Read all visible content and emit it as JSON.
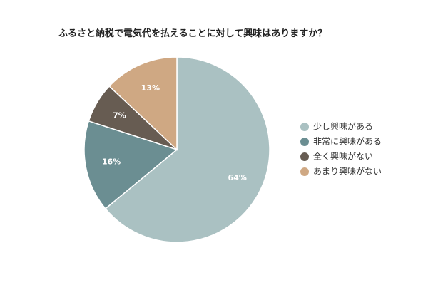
{
  "chart_data": {
    "type": "pie",
    "title": "ふるさと納税で電気代を払えることに対して興味はありますか？",
    "categories": [
      "少し興味がある",
      "非常に興味がある",
      "全く興味がない",
      "あまり興味がない"
    ],
    "values": [
      64,
      16,
      7,
      13
    ],
    "value_labels": [
      "64%",
      "16%",
      "7%",
      "13%"
    ],
    "colors": [
      "#aac1c2",
      "#6b8e92",
      "#675c52",
      "#cfa883"
    ],
    "start_angle_deg": 0,
    "direction": "clockwise",
    "legend_position": "right"
  }
}
